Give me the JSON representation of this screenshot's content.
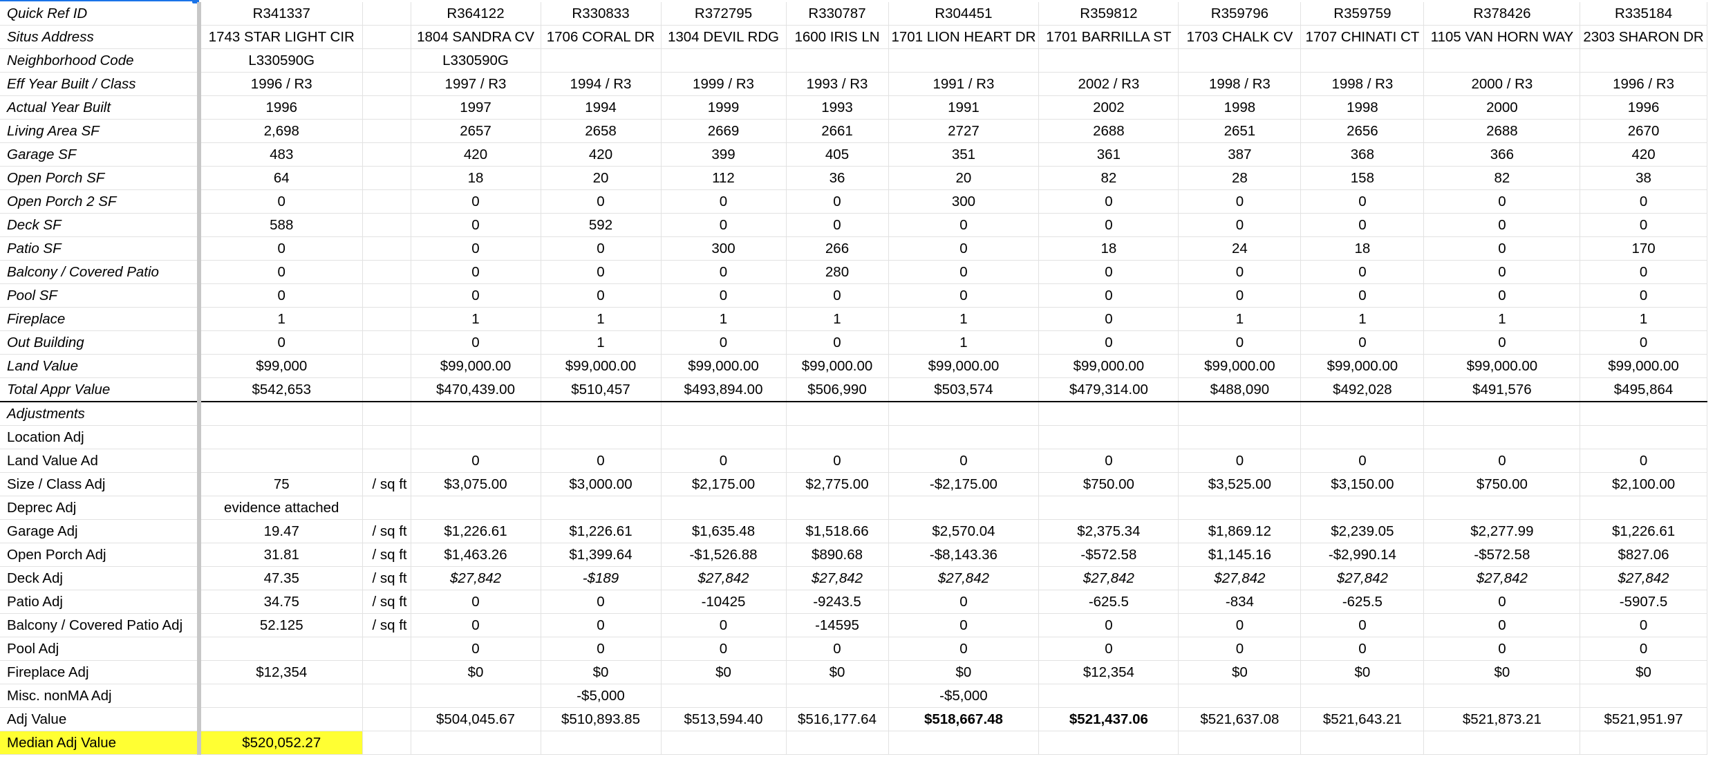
{
  "sheet": {
    "header_rows": [
      {
        "label": "Quick Ref ID",
        "cells": [
          "R341337",
          "",
          "R364122",
          "R330833",
          "R372795",
          "R330787",
          "R304451",
          "R359812",
          "R359796",
          "R359759",
          "R378426",
          "R335184"
        ]
      },
      {
        "label": "Situs Address",
        "cells": [
          "1743 STAR LIGHT CIR",
          "",
          "1804 SANDRA CV",
          "1706 CORAL DR",
          "1304 DEVIL RDG",
          "1600 IRIS LN",
          "1701 LION HEART DR",
          "1701 BARRILLA ST",
          "1703 CHALK CV",
          "1707 CHINATI CT",
          "1105 VAN HORN WAY",
          "2303 SHARON DR"
        ]
      },
      {
        "label": "Neighborhood Code",
        "cells": [
          "L330590G",
          "",
          "L330590G",
          "",
          "",
          "",
          "",
          "",
          "",
          "",
          "",
          ""
        ]
      },
      {
        "label": "Eff Year Built / Class",
        "cells": [
          "1996 / R3",
          "",
          "1997 / R3",
          "1994 / R3",
          "1999 / R3",
          "1993 / R3",
          "1991 / R3",
          "2002 / R3",
          "1998 / R3",
          "1998 / R3",
          "2000 / R3",
          "1996 / R3"
        ]
      },
      {
        "label": "Actual Year Built",
        "cells": [
          "1996",
          "",
          "1997",
          "1994",
          "1999",
          "1993",
          "1991",
          "2002",
          "1998",
          "1998",
          "2000",
          "1996"
        ]
      },
      {
        "label": "Living Area SF",
        "cells": [
          "2,698",
          "",
          "2657",
          "2658",
          "2669",
          "2661",
          "2727",
          "2688",
          "2651",
          "2656",
          "2688",
          "2670"
        ]
      },
      {
        "label": "Garage SF",
        "cells": [
          "483",
          "",
          "420",
          "420",
          "399",
          "405",
          "351",
          "361",
          "387",
          "368",
          "366",
          "420"
        ]
      },
      {
        "label": "Open Porch SF",
        "cells": [
          "64",
          "",
          "18",
          "20",
          "112",
          "36",
          "20",
          "82",
          "28",
          "158",
          "82",
          "38"
        ]
      },
      {
        "label": "Open Porch 2 SF",
        "cells": [
          "0",
          "",
          "0",
          "0",
          "0",
          "0",
          "300",
          "0",
          "0",
          "0",
          "0",
          "0"
        ]
      },
      {
        "label": "Deck SF",
        "cells": [
          "588",
          "",
          "0",
          "592",
          "0",
          "0",
          "0",
          "0",
          "0",
          "0",
          "0",
          "0"
        ]
      },
      {
        "label": "Patio SF",
        "cells": [
          "0",
          "",
          "0",
          "0",
          "300",
          "266",
          "0",
          "18",
          "24",
          "18",
          "0",
          "170"
        ]
      },
      {
        "label": "Balcony / Covered Patio",
        "cells": [
          "0",
          "",
          "0",
          "0",
          "0",
          "280",
          "0",
          "0",
          "0",
          "0",
          "0",
          "0"
        ]
      },
      {
        "label": "Pool SF",
        "cells": [
          "0",
          "",
          "0",
          "0",
          "0",
          "0",
          "0",
          "0",
          "0",
          "0",
          "0",
          "0"
        ]
      },
      {
        "label": "Fireplace",
        "cells": [
          "1",
          "",
          "1",
          "1",
          "1",
          "1",
          "1",
          "0",
          "1",
          "1",
          "1",
          "1"
        ]
      },
      {
        "label": "Out Building",
        "cells": [
          "0",
          "",
          "0",
          "1",
          "0",
          "0",
          "1",
          "0",
          "0",
          "0",
          "0",
          "0"
        ]
      },
      {
        "label": "Land Value",
        "cells": [
          "$99,000",
          "",
          "$99,000.00",
          "$99,000.00",
          "$99,000.00",
          "$99,000.00",
          "$99,000.00",
          "$99,000.00",
          "$99,000.00",
          "$99,000.00",
          "$99,000.00",
          "$99,000.00"
        ]
      },
      {
        "label": "Total Appr Value",
        "cells": [
          "$542,653",
          "",
          "$470,439.00",
          "$510,457",
          "$493,894.00",
          "$506,990",
          "$503,574",
          "$479,314.00",
          "$488,090",
          "$492,028",
          "$491,576",
          "$495,864"
        ]
      }
    ],
    "adjustment_header": "Adjustments",
    "adj_rows": [
      {
        "label": "Location Adj",
        "cells": [
          "",
          "",
          "",
          "",
          "",
          "",
          "",
          "",
          "",
          "",
          "",
          ""
        ]
      },
      {
        "label": "Land Value Ad",
        "cells": [
          "",
          "",
          "0",
          "0",
          "0",
          "0",
          "0",
          "0",
          "0",
          "0",
          "0",
          "0"
        ]
      },
      {
        "label": "Size / Class Adj",
        "cells": [
          "75",
          "/ sq ft",
          "$3,075.00",
          "$3,000.00",
          "$2,175.00",
          "$2,775.00",
          "-$2,175.00",
          "$750.00",
          "$3,525.00",
          "$3,150.00",
          "$750.00",
          "$2,100.00"
        ]
      },
      {
        "label": "Deprec Adj",
        "cells": [
          "evidence attached",
          "",
          "",
          "",
          "",
          "",
          "",
          "",
          "",
          "",
          "",
          ""
        ]
      },
      {
        "label": "Garage Adj",
        "cells": [
          "19.47",
          "/ sq ft",
          "$1,226.61",
          "$1,226.61",
          "$1,635.48",
          "$1,518.66",
          "$2,570.04",
          "$2,375.34",
          "$1,869.12",
          "$2,239.05",
          "$2,277.99",
          "$1,226.61"
        ]
      },
      {
        "label": "Open Porch Adj",
        "cells": [
          "31.81",
          "/ sq ft",
          "$1,463.26",
          "$1,399.64",
          "-$1,526.88",
          "$890.68",
          "-$8,143.36",
          "-$572.58",
          "$1,145.16",
          "-$2,990.14",
          "-$572.58",
          "$827.06"
        ]
      },
      {
        "label": "Deck Adj",
        "cells": [
          "47.35",
          "/ sq ft",
          "$27,842",
          "-$189",
          "$27,842",
          "$27,842",
          "$27,842",
          "$27,842",
          "$27,842",
          "$27,842",
          "$27,842",
          "$27,842"
        ]
      },
      {
        "label": "Patio Adj",
        "cells": [
          "34.75",
          "/ sq ft",
          "0",
          "0",
          "-10425",
          "-9243.5",
          "0",
          "-625.5",
          "-834",
          "-625.5",
          "0",
          "-5907.5"
        ]
      },
      {
        "label": "Balcony / Covered Patio Adj",
        "cells": [
          "52.125",
          "/ sq ft",
          "0",
          "0",
          "0",
          "-14595",
          "0",
          "0",
          "0",
          "0",
          "0",
          "0"
        ]
      },
      {
        "label": "Pool Adj",
        "cells": [
          "",
          "",
          "0",
          "0",
          "0",
          "0",
          "0",
          "0",
          "0",
          "0",
          "0",
          "0"
        ]
      },
      {
        "label": "Fireplace Adj",
        "cells": [
          "$12,354",
          "",
          "$0",
          "$0",
          "$0",
          "$0",
          "$0",
          "$12,354",
          "$0",
          "$0",
          "$0",
          "$0"
        ]
      },
      {
        "label": "Misc. nonMA Adj",
        "cells": [
          "",
          "",
          "",
          "-$5,000",
          "",
          "",
          "-$5,000",
          "",
          "",
          "",
          "",
          ""
        ]
      },
      {
        "label": "Adj Value",
        "cells": [
          "",
          "",
          "$504,045.67",
          "$510,893.85",
          "$513,594.40",
          "$516,177.64",
          "$518,667.48",
          "$521,437.06",
          "$521,637.08",
          "$521,643.21",
          "$521,873.21",
          "$521,951.97"
        ]
      },
      {
        "label": "Median Adj Value",
        "cells": [
          "$520,052.27",
          "",
          "",
          "",
          "",
          "",
          "",
          "",
          "",
          "",
          "",
          ""
        ]
      }
    ]
  }
}
